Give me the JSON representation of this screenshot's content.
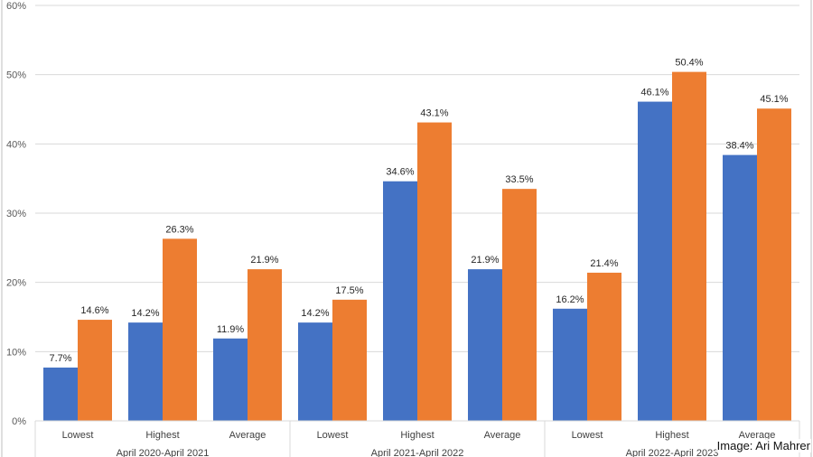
{
  "chart_data": {
    "type": "bar",
    "title": "",
    "xlabel": "",
    "ylabel": "",
    "ylim": [
      0,
      60
    ],
    "yticks": [
      "0%",
      "10%",
      "20%",
      "30%",
      "40%",
      "50%",
      "60%"
    ],
    "grid": true,
    "legend": "none",
    "groups": [
      {
        "label": "April 2020-April 2021",
        "categories": [
          "Lowest",
          "Highest",
          "Average"
        ]
      },
      {
        "label": "April 2021-April 2022",
        "categories": [
          "Lowest",
          "Highest",
          "Average"
        ]
      },
      {
        "label": "April 2022-April 2023",
        "categories": [
          "Lowest",
          "Highest",
          "Average"
        ]
      }
    ],
    "series": [
      {
        "color": "#4472C4",
        "values": [
          7.7,
          14.2,
          11.9,
          14.2,
          34.6,
          21.9,
          16.2,
          46.1,
          38.4
        ],
        "labels": [
          "7.7%",
          "14.2%",
          "11.9%",
          "14.2%",
          "34.6%",
          "21.9%",
          "16.2%",
          "46.1%",
          "38.4%"
        ]
      },
      {
        "color": "#ED7D31",
        "values": [
          14.6,
          26.3,
          21.9,
          17.5,
          43.1,
          33.5,
          21.4,
          50.4,
          45.1
        ],
        "labels": [
          "14.6%",
          "26.3%",
          "21.9%",
          "17.5%",
          "43.1%",
          "33.5%",
          "21.4%",
          "50.4%",
          "45.1%"
        ]
      }
    ]
  },
  "credit": "Image: Ari Mahrer"
}
